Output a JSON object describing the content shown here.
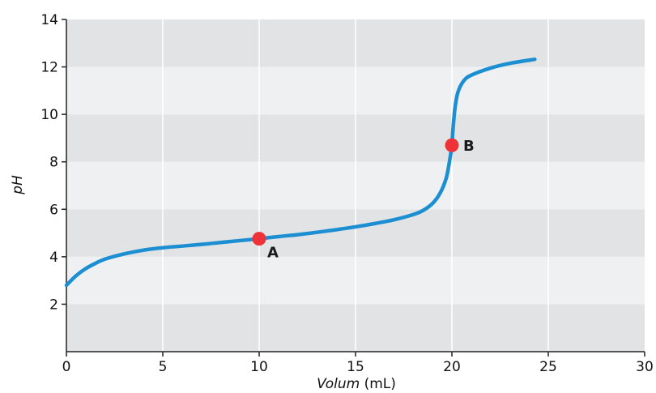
{
  "chart_data": {
    "type": "line",
    "title": "",
    "xlabel_italic": "Volum",
    "xlabel_unit": " (mL)",
    "ylabel": "pH",
    "xlim": [
      0,
      30
    ],
    "ylim": [
      0,
      14
    ],
    "xticks": [
      0,
      5,
      10,
      15,
      20,
      25,
      30
    ],
    "yticks": [
      2,
      4,
      6,
      8,
      10,
      12,
      14
    ],
    "grid": true,
    "colors": {
      "line": "#1b8fd2",
      "point": "#ee3338",
      "band_dark": "#e1e3e5",
      "band_light": "#eef0f1",
      "gridline": "#ffffff",
      "axis": "#222222"
    },
    "series": [
      {
        "x": [
          0,
          0.5,
          1,
          1.5,
          2,
          3,
          4,
          5,
          6,
          7,
          8,
          9,
          10,
          11,
          12,
          13,
          14,
          15,
          16,
          17,
          18,
          18.5,
          19,
          19.4,
          19.7,
          19.85,
          19.95,
          20,
          20.05,
          20.15,
          20.3,
          20.6,
          21,
          22,
          23,
          24.3
        ],
        "y": [
          2.8,
          3.2,
          3.5,
          3.72,
          3.9,
          4.12,
          4.28,
          4.38,
          4.45,
          4.52,
          4.6,
          4.68,
          4.76,
          4.85,
          4.93,
          5.03,
          5.14,
          5.26,
          5.4,
          5.56,
          5.78,
          5.95,
          6.25,
          6.7,
          7.3,
          7.9,
          8.4,
          8.7,
          9.3,
          10.2,
          10.9,
          11.4,
          11.65,
          11.95,
          12.15,
          12.32
        ]
      }
    ],
    "points": [
      {
        "label": "A",
        "x": 10,
        "y": 4.76
      },
      {
        "label": "B",
        "x": 20,
        "y": 8.7
      }
    ]
  }
}
